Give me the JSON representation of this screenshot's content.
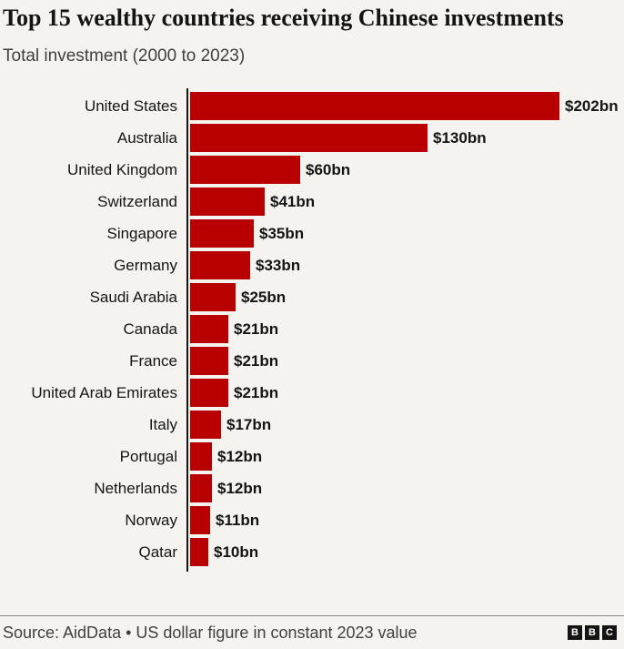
{
  "header": {
    "title": "Top 15 wealthy countries receiving Chinese investments",
    "subtitle": "Total investment (2000 to 2023)"
  },
  "chart_data": {
    "type": "bar",
    "orientation": "horizontal",
    "title": "Top 15 wealthy countries receiving Chinese investments",
    "subtitle": "Total investment (2000 to 2023)",
    "categories": [
      "United States",
      "Australia",
      "United Kingdom",
      "Switzerland",
      "Singapore",
      "Germany",
      "Saudi Arabia",
      "Canada",
      "France",
      "United Arab Emirates",
      "Italy",
      "Portugal",
      "Netherlands",
      "Norway",
      "Qatar"
    ],
    "values": [
      202,
      130,
      60,
      41,
      35,
      33,
      25,
      21,
      21,
      21,
      17,
      12,
      12,
      11,
      10
    ],
    "value_labels": [
      "$202bn",
      "$130bn",
      "$60bn",
      "$41bn",
      "$35bn",
      "$33bn",
      "$25bn",
      "$21bn",
      "$21bn",
      "$21bn",
      "$17bn",
      "$12bn",
      "$12bn",
      "$11bn",
      "$10bn"
    ],
    "unit": "US$ billions",
    "xlim": [
      0,
      202
    ],
    "grid": false,
    "legend": false,
    "bar_color": "#b80000"
  },
  "footer": {
    "source": "Source: AidData • US dollar figure in constant 2023 value",
    "logo": {
      "name": "BBC",
      "letters": [
        "B",
        "B",
        "C"
      ]
    }
  },
  "colors": {
    "background": "#f4f3f0",
    "bar": "#b80000",
    "text": "#141414",
    "subtitle_text": "#3f3f3d",
    "source_text": "#404040",
    "axis": "#141414",
    "divider": "#878684",
    "logo_bg": "#141414",
    "logo_text": "#ffffff"
  }
}
